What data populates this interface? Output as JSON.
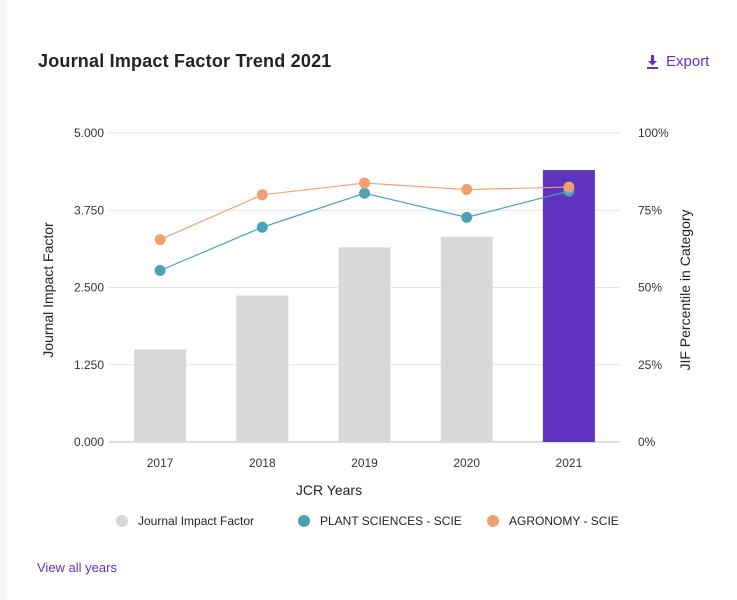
{
  "header": {
    "title": "Journal Impact Factor Trend 2021",
    "export_label": "Export"
  },
  "footer": {
    "view_all_label": "View all years"
  },
  "colors": {
    "bar": "#d8d8d8",
    "bar_highlight": "#5e33bf",
    "plant": "#4aa3b5",
    "agronomy": "#f0a070",
    "accent": "#5e33bf"
  },
  "chart_data": {
    "type": "bar",
    "xlabel": "JCR Years",
    "ylabel": "Journal Impact Factor",
    "ylabel_right": "JIF Percentile in Category",
    "categories": [
      "2017",
      "2018",
      "2019",
      "2020",
      "2021"
    ],
    "ylim": [
      0,
      5
    ],
    "ylim_right": [
      0,
      100
    ],
    "yticks": [
      "5.000",
      "3.750",
      "2.500",
      "1.250",
      "0.000"
    ],
    "yticks_right": [
      "100%",
      "75%",
      "50%",
      "25%",
      "0%"
    ],
    "series": [
      {
        "name": "Journal Impact Factor",
        "kind": "bar",
        "axis": "left",
        "values": [
          1.5,
          2.37,
          3.15,
          3.32,
          4.4
        ]
      },
      {
        "name": "PLANT SCIENCES - SCIE",
        "kind": "line",
        "axis": "right",
        "values": [
          55.5,
          69.5,
          80.5,
          72.7,
          81.2
        ]
      },
      {
        "name": "AGRONOMY - SCIE",
        "kind": "line",
        "axis": "right",
        "values": [
          65.5,
          80.0,
          83.8,
          81.7,
          82.5
        ]
      }
    ],
    "highlight_category": "2021"
  }
}
